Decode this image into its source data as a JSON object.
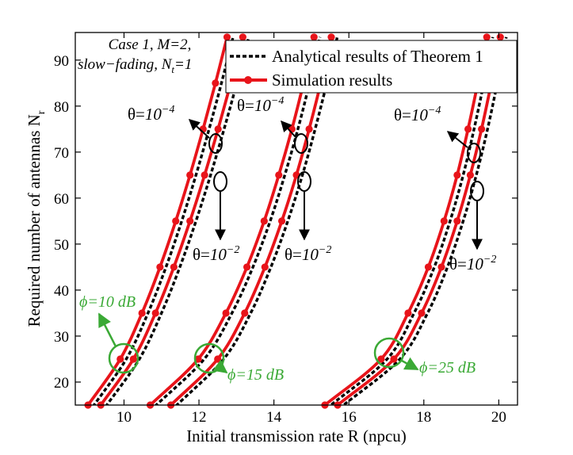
{
  "chart_data": {
    "type": "line",
    "title": "",
    "xlabel": "Initial transmission rate R (npcu)",
    "ylabel": "Required number of antennas N",
    "ylabel_sub": "r",
    "xlim": [
      8.7,
      20.5
    ],
    "ylim": [
      15,
      96
    ],
    "xticks": [
      10,
      12,
      14,
      16,
      18,
      20
    ],
    "yticks": [
      20,
      30,
      40,
      50,
      60,
      70,
      80,
      90
    ],
    "grid": false,
    "legend": {
      "placement": "top-right",
      "entries": [
        {
          "label": "Analytical results of Theorem 1",
          "style": "dotted",
          "color": "#000000"
        },
        {
          "label": "Simulation results",
          "style": "solid-marker",
          "color": "#e8141a"
        }
      ]
    },
    "case_label": {
      "line1": "Case 1, M=2,",
      "line2_prefix": "slow−fading, N",
      "line2_sub": "t",
      "line2_suffix": "=1"
    },
    "annotations": {
      "theta_prefix": "θ=",
      "theta_base": "10",
      "theta_exp_small": "−4",
      "theta_exp_large": "−2",
      "phi_labels": [
        "ϕ=10 dB",
        "ϕ=15 dB",
        "ϕ=25 dB"
      ]
    },
    "colors": {
      "simulation": "#e8141a",
      "analytical": "#000000",
      "annotation_green": "#3aa935"
    },
    "marker_N": [
      15,
      25,
      35,
      45,
      55,
      65,
      75,
      85,
      95
    ],
    "series": [
      {
        "name": "Simulation, ϕ=10 dB, θ=10^-4",
        "kind": "simulation",
        "x": [
          9.04,
          9.9,
          10.48,
          10.96,
          11.38,
          11.76,
          12.11,
          12.44,
          12.75
        ],
        "y": [
          15,
          25,
          35,
          45,
          55,
          65,
          75,
          85,
          95
        ]
      },
      {
        "name": "Simulation, ϕ=10 dB, θ=10^-2",
        "kind": "simulation",
        "x": [
          9.38,
          10.25,
          10.84,
          11.33,
          11.76,
          12.15,
          12.51,
          12.85,
          13.17
        ],
        "y": [
          15,
          25,
          35,
          45,
          55,
          65,
          75,
          85,
          95
        ]
      },
      {
        "name": "Simulation, ϕ=15 dB, θ=10^-4",
        "kind": "simulation",
        "x": [
          10.7,
          11.98,
          12.72,
          13.28,
          13.74,
          14.13,
          14.48,
          14.79,
          15.07
        ],
        "y": [
          15,
          25,
          35,
          45,
          55,
          65,
          75,
          85,
          95
        ]
      },
      {
        "name": "Simulation, ϕ=15 dB, θ=10^-2",
        "kind": "simulation",
        "x": [
          11.25,
          12.5,
          13.22,
          13.76,
          14.21,
          14.6,
          14.94,
          15.25,
          15.53
        ],
        "y": [
          15,
          25,
          35,
          45,
          55,
          65,
          75,
          85,
          95
        ]
      },
      {
        "name": "Simulation, ϕ=25 dB, θ=10^-4",
        "kind": "simulation",
        "x": [
          15.36,
          16.86,
          17.58,
          18.12,
          18.54,
          18.89,
          19.18,
          19.44,
          19.68
        ],
        "y": [
          15,
          25,
          35,
          45,
          55,
          65,
          75,
          85,
          95
        ]
      },
      {
        "name": "Simulation, ϕ=25 dB, θ=10^-2",
        "kind": "simulation",
        "x": [
          15.7,
          17.2,
          17.94,
          18.47,
          18.89,
          19.24,
          19.54,
          19.8,
          20.04
        ],
        "y": [
          15,
          25,
          35,
          45,
          55,
          65,
          75,
          85,
          95
        ]
      },
      {
        "name": "Analytical, ϕ=10 dB, θ=10^-4",
        "kind": "analytical",
        "x": [
          9.2,
          10.06,
          10.64,
          11.12,
          11.54,
          11.92,
          12.27,
          12.6,
          12.91
        ],
        "y": [
          15,
          25,
          35,
          45,
          55,
          65,
          75,
          85,
          95
        ]
      },
      {
        "name": "Analytical, ϕ=10 dB, θ=10^-2",
        "kind": "analytical",
        "x": [
          9.54,
          10.41,
          11.0,
          11.49,
          11.92,
          12.31,
          12.67,
          13.01,
          13.33
        ],
        "y": [
          15,
          25,
          35,
          45,
          55,
          65,
          75,
          85,
          95
        ]
      },
      {
        "name": "Analytical, ϕ=15 dB, θ=10^-4",
        "kind": "analytical",
        "x": [
          10.86,
          12.14,
          12.88,
          13.44,
          13.9,
          14.29,
          14.64,
          14.95,
          15.23
        ],
        "y": [
          15,
          25,
          35,
          45,
          55,
          65,
          75,
          85,
          95
        ]
      },
      {
        "name": "Analytical, ϕ=15 dB, θ=10^-2",
        "kind": "analytical",
        "x": [
          11.41,
          12.66,
          13.38,
          13.92,
          14.37,
          14.76,
          15.1,
          15.41,
          15.69
        ],
        "y": [
          15,
          25,
          35,
          45,
          55,
          65,
          75,
          85,
          95
        ]
      },
      {
        "name": "Analytical, ϕ=25 dB, θ=10^-4",
        "kind": "analytical",
        "x": [
          15.52,
          17.02,
          17.74,
          18.28,
          18.7,
          19.05,
          19.34,
          19.6,
          19.84
        ],
        "y": [
          15,
          25,
          35,
          45,
          55,
          65,
          75,
          85,
          95
        ]
      },
      {
        "name": "Analytical, ϕ=25 dB, θ=10^-2",
        "kind": "analytical",
        "x": [
          15.86,
          17.36,
          18.1,
          18.63,
          19.05,
          19.4,
          19.7,
          19.96,
          20.2
        ],
        "y": [
          15,
          25,
          35,
          45,
          55,
          65,
          75,
          85,
          95
        ]
      }
    ]
  }
}
